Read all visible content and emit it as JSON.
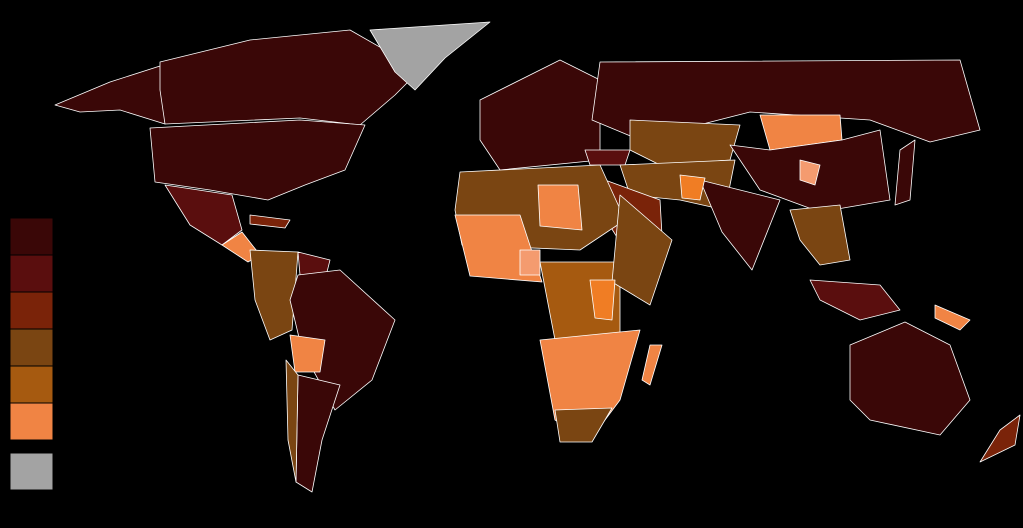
{
  "legend": {
    "swatches": [
      {
        "color": "#3a0707"
      },
      {
        "color": "#5a0e0e"
      },
      {
        "color": "#7a2309"
      },
      {
        "color": "#7a4512"
      },
      {
        "color": "#a65a10"
      },
      {
        "color": "#f08444"
      },
      {
        "color": "#a3a3a3"
      }
    ]
  },
  "map_colors": {
    "light": "#f49b6f",
    "orange": "#f07d24"
  }
}
